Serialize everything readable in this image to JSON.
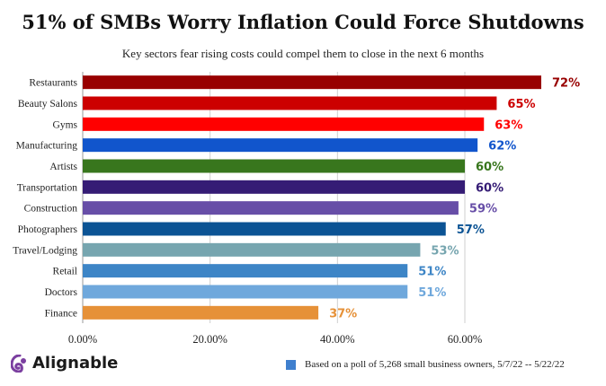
{
  "chart_data": {
    "type": "bar",
    "orientation": "horizontal",
    "title": "51% of SMBs Worry Inflation Could Force Shutdowns",
    "subtitle": "Key sectors fear rising costs could compel them to close in the next 6 months",
    "categories": [
      "Restaurants",
      "Beauty Salons",
      "Gyms",
      "Manufacturing",
      "Artists",
      "Transportation",
      "Construction",
      "Photographers",
      "Travel/Lodging",
      "Retail",
      "Doctors",
      "Finance"
    ],
    "values": [
      72,
      65,
      63,
      62,
      60,
      60,
      59,
      57,
      53,
      51,
      51,
      37
    ],
    "value_labels": [
      "72%",
      "65%",
      "63%",
      "62%",
      "60%",
      "60%",
      "59%",
      "57%",
      "53%",
      "51%",
      "51%",
      "37%"
    ],
    "bar_colors": [
      "#980000",
      "#cc0000",
      "#ff0000",
      "#1155cc",
      "#38761d",
      "#351c75",
      "#674ea7",
      "#0b5394",
      "#76a5af",
      "#3d85c6",
      "#6fa8dc",
      "#e69138"
    ],
    "label_colors": [
      "#980000",
      "#cc0000",
      "#ff0000",
      "#1155cc",
      "#38761d",
      "#351c75",
      "#674ea7",
      "#0b5394",
      "#76a5af",
      "#3d85c6",
      "#6fa8dc",
      "#e69138"
    ],
    "xlim": [
      0,
      72
    ],
    "x_ticks": [
      0,
      20,
      40,
      60
    ],
    "x_tick_labels": [
      "0.00%",
      "20.00%",
      "40.00%",
      "60.00%"
    ],
    "grid": "vertical",
    "legend": {
      "position": "bottom-right",
      "color": "#3f7fce",
      "text": "Based on a poll of 5,268 small business owners, 5/7/22 -- 5/22/22"
    }
  },
  "brand": {
    "name": "Alignable",
    "icon": "alignable-logo-icon",
    "color": "#7b3fa0"
  }
}
